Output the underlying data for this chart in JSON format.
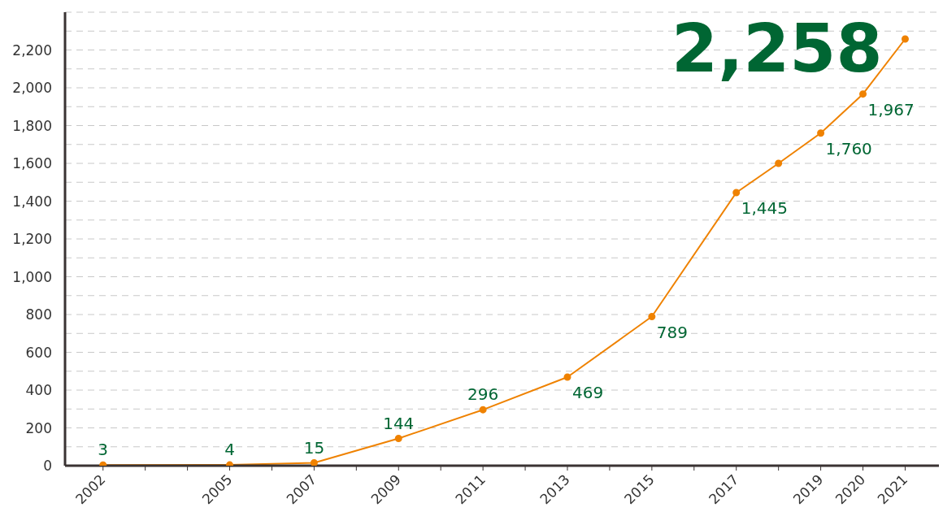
{
  "chart_data": {
    "type": "line",
    "x": [
      2002,
      2005,
      2007,
      2009,
      2011,
      2013,
      2015,
      2017,
      2018,
      2019,
      2020,
      2021
    ],
    "series": [
      {
        "color": "#ef8200",
        "values": [
          3,
          4,
          15,
          144,
          296,
          469,
          789,
          1445,
          1600,
          1760,
          1967,
          2258
        ],
        "value_labels": [
          "3",
          "4",
          "15",
          "144",
          "296",
          "469",
          "789",
          "1,445",
          null,
          "1,760",
          "1,967",
          null
        ]
      }
    ],
    "annotations": [
      {
        "text": "2,258",
        "x": 2021,
        "y": 2258
      }
    ],
    "xlim": [
      2001.1,
      2021.8
    ],
    "xticks": [
      2002,
      {
        "value": 2003,
        "label": null
      },
      {
        "value": 2004,
        "label": null
      },
      2005,
      {
        "value": 2006,
        "label": null
      },
      2007,
      {
        "value": 2008,
        "label": null
      },
      2009,
      {
        "value": 2010,
        "label": null
      },
      2011,
      {
        "value": 2012,
        "label": null
      },
      2013,
      {
        "value": 2014,
        "label": null
      },
      2015,
      {
        "value": 2016,
        "label": null
      },
      2017,
      {
        "value": 2018,
        "label": null
      },
      2019,
      2020,
      2021
    ],
    "ylim": [
      0,
      2400
    ],
    "yticks": [
      0,
      {
        "value": 100,
        "label": null
      },
      200,
      {
        "value": 300,
        "label": null
      },
      400,
      {
        "value": 500,
        "label": null
      },
      600,
      {
        "value": 700,
        "label": null
      },
      800,
      {
        "value": 900,
        "label": null
      },
      {
        "value": 1000,
        "label": "1,000"
      },
      {
        "value": 1100,
        "label": null
      },
      {
        "value": 1200,
        "label": "1,200"
      },
      {
        "value": 1300,
        "label": null
      },
      {
        "value": 1400,
        "label": "1,400"
      },
      {
        "value": 1500,
        "label": null
      },
      {
        "value": 1600,
        "label": "1,600"
      },
      {
        "value": 1700,
        "label": null
      },
      {
        "value": 1800,
        "label": "1,800"
      },
      {
        "value": 1900,
        "label": null
      },
      {
        "value": 2000,
        "label": "2,000"
      },
      {
        "value": 2100,
        "label": null
      },
      {
        "value": 2200,
        "label": "2,200"
      },
      {
        "value": 2300,
        "label": null
      }
    ],
    "grid": "y",
    "marker": "circle",
    "line_style": "solid"
  }
}
